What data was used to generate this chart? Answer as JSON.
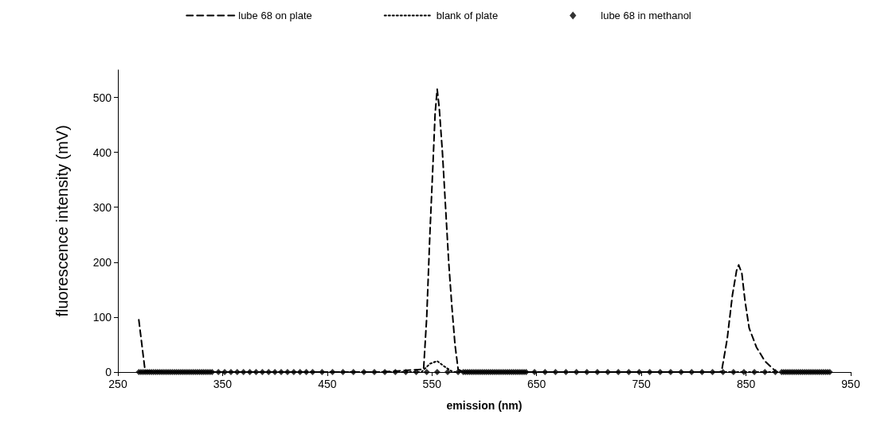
{
  "chart_data": {
    "type": "line",
    "xlabel": "emission (nm)",
    "ylabel": "fluorescence intensity (mV)",
    "xlim": [
      250,
      950
    ],
    "ylim": [
      0,
      550
    ],
    "xticks": [
      250,
      350,
      450,
      550,
      650,
      750,
      850,
      950
    ],
    "yticks": [
      0,
      100,
      200,
      300,
      400,
      500
    ],
    "grid": false,
    "legend": "top",
    "series": [
      {
        "name": "lube 68 on plate",
        "color": "#000000",
        "line_style": "dashed",
        "marker": "none",
        "x": [
          270,
          276,
          300,
          400,
          500,
          542,
          545,
          548,
          551,
          553,
          555,
          557,
          560,
          563,
          566,
          569,
          572,
          575,
          580,
          700,
          825,
          827,
          832,
          837,
          841,
          843,
          846,
          849,
          853,
          860,
          868,
          878
        ],
        "values": [
          95,
          2,
          0,
          0,
          0,
          5,
          100,
          250,
          380,
          470,
          515,
          480,
          400,
          300,
          200,
          120,
          50,
          5,
          0,
          0,
          0,
          5,
          60,
          140,
          185,
          195,
          180,
          130,
          80,
          45,
          20,
          2
        ]
      },
      {
        "name": "blank of plate",
        "color": "#000000",
        "line_style": "dotted",
        "marker": "none",
        "x": [
          270,
          400,
          540,
          548,
          555,
          562,
          570,
          700,
          880
        ],
        "values": [
          0,
          0,
          0,
          15,
          20,
          10,
          0,
          0,
          0
        ]
      },
      {
        "name": "lube 68 in methanol",
        "type": "scatter",
        "color": "#000000",
        "marker": "diamond",
        "x": [
          270,
          272,
          274,
          276,
          278,
          280,
          282,
          284,
          286,
          288,
          290,
          292,
          294,
          296,
          298,
          300,
          302,
          304,
          306,
          308,
          310,
          312,
          314,
          316,
          318,
          320,
          322,
          324,
          326,
          328,
          330,
          332,
          334,
          336,
          338,
          340,
          346,
          352,
          358,
          364,
          370,
          376,
          382,
          388,
          394,
          400,
          406,
          412,
          418,
          424,
          430,
          436,
          445,
          455,
          465,
          475,
          485,
          495,
          505,
          515,
          525,
          535,
          545,
          555,
          565,
          575,
          580,
          582,
          584,
          586,
          588,
          590,
          592,
          594,
          596,
          598,
          600,
          602,
          604,
          606,
          608,
          610,
          612,
          614,
          616,
          618,
          620,
          622,
          624,
          626,
          628,
          630,
          632,
          634,
          636,
          638,
          640,
          648,
          658,
          668,
          678,
          688,
          698,
          708,
          718,
          728,
          738,
          748,
          758,
          768,
          778,
          788,
          798,
          808,
          818,
          828,
          838,
          848,
          858,
          868,
          878,
          884,
          886,
          888,
          890,
          892,
          894,
          896,
          898,
          900,
          902,
          904,
          906,
          908,
          910,
          912,
          914,
          916,
          918,
          920,
          922,
          924,
          926,
          928,
          930
        ],
        "values": [
          0,
          0,
          0,
          0,
          0,
          0,
          0,
          0,
          0,
          0,
          0,
          0,
          0,
          0,
          0,
          0,
          0,
          0,
          0,
          0,
          0,
          0,
          0,
          0,
          0,
          0,
          0,
          0,
          0,
          0,
          0,
          0,
          0,
          0,
          0,
          0,
          0,
          0,
          0,
          0,
          0,
          0,
          0,
          0,
          0,
          0,
          0,
          0,
          0,
          0,
          0,
          0,
          0,
          0,
          0,
          0,
          0,
          0,
          0,
          0,
          0,
          0,
          0,
          0,
          0,
          0,
          0,
          0,
          0,
          0,
          0,
          0,
          0,
          0,
          0,
          0,
          0,
          0,
          0,
          0,
          0,
          0,
          0,
          0,
          0,
          0,
          0,
          0,
          0,
          0,
          0,
          0,
          0,
          0,
          0,
          0,
          0,
          0,
          0,
          0,
          0,
          0,
          0,
          0,
          0,
          0,
          0,
          0,
          0,
          0,
          0,
          0,
          0,
          0,
          0,
          0,
          0,
          0,
          0,
          0,
          0,
          0,
          0,
          0,
          0,
          0,
          0,
          0,
          0,
          0,
          0,
          0,
          0,
          0,
          0,
          0,
          0,
          0,
          0,
          0,
          0,
          0,
          0,
          0,
          0
        ]
      }
    ]
  }
}
